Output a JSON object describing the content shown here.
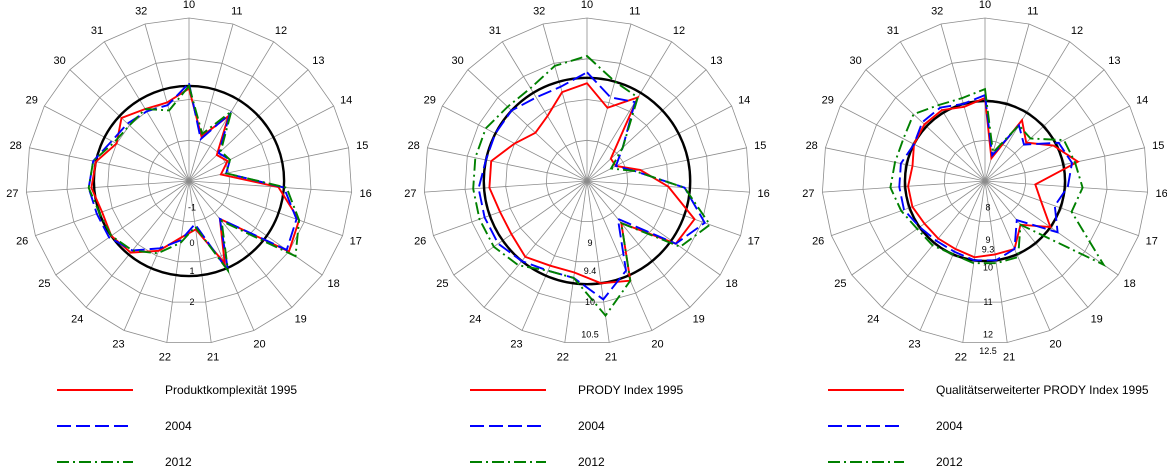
{
  "chart_data": [
    {
      "type": "radar",
      "categories": [
        "10",
        "11",
        "12",
        "13",
        "14",
        "15",
        "16",
        "17",
        "18",
        "19",
        "20",
        "21",
        "22",
        "23",
        "24",
        "25",
        "26",
        "27",
        "28",
        "29",
        "30",
        "31",
        "32"
      ],
      "rmin": -2,
      "rmax": 4,
      "reference_value": 1.5,
      "tick_labels": [
        {
          "label": "-1",
          "value": -1,
          "pos": 0.18
        },
        {
          "label": "0",
          "value": 0,
          "pos": 0.4
        },
        {
          "label": "1",
          "value": 1,
          "pos": 0.57
        },
        {
          "label": "2",
          "value": 2,
          "pos": 0.76
        }
      ],
      "series": [
        {
          "name": "Produktkomplexität 1995",
          "color": "#ff0000",
          "dash": "solid",
          "values": [
            1.4,
            -0.3,
            0.8,
            -0.6,
            -0.4,
            -0.8,
            1.3,
            2.3,
            2.5,
            -0.2,
            1.3,
            -0.2,
            0.1,
            0.8,
            1.4,
            1.5,
            1.4,
            1.6,
            1.5,
            1.0,
            1.4,
            1.1,
            1.0
          ]
        },
        {
          "name": "2004",
          "color": "#0000ff",
          "dash": "dashed",
          "values": [
            1.6,
            -0.4,
            0.9,
            -0.5,
            -0.3,
            -0.6,
            1.5,
            2.2,
            2.4,
            -0.2,
            1.6,
            -0.4,
            0.2,
            0.7,
            1.3,
            1.6,
            1.6,
            1.7,
            1.6,
            1.2,
            1.1,
            1.0,
            0.9
          ]
        },
        {
          "name": "2012",
          "color": "#008000",
          "dash": "dashdot",
          "values": [
            1.5,
            -0.2,
            1.0,
            -0.4,
            -0.3,
            -0.6,
            1.6,
            2.3,
            2.8,
            -0.1,
            1.6,
            -0.3,
            0.3,
            0.9,
            1.3,
            1.5,
            1.5,
            1.7,
            1.6,
            1.1,
            1.0,
            1.1,
            0.7
          ]
        }
      ]
    },
    {
      "type": "radar",
      "categories": [
        "10",
        "11",
        "12",
        "13",
        "14",
        "15",
        "16",
        "17",
        "18",
        "19",
        "20",
        "21",
        "22",
        "23",
        "24",
        "25",
        "26",
        "27",
        "28",
        "29",
        "30",
        "31",
        "32"
      ],
      "rmin": 8,
      "rmax": 11,
      "reference_value": 9.9,
      "tick_labels": [
        {
          "label": "9",
          "value": 9,
          "pos": 0.4
        },
        {
          "label": "9.4",
          "value": 9.4,
          "pos": 0.57
        },
        {
          "label": "10",
          "value": 10,
          "pos": 0.76
        },
        {
          "label": "10.5",
          "value": 10.5,
          "pos": 0.96
        }
      ],
      "series": [
        {
          "name": "PRODY Index 1995",
          "color": "#ff0000",
          "dash": "solid",
          "values": [
            9.8,
            9.4,
            9.8,
            8.6,
            8.6,
            9.0,
            9.5,
            10.1,
            10.0,
            9.0,
            10.0,
            9.9,
            9.7,
            9.7,
            9.8,
            9.7,
            9.7,
            9.8,
            9.8,
            9.5,
            9.3,
            9.4,
            9.7
          ]
        },
        {
          "name": "2004",
          "color": "#0000ff",
          "dash": "dashed",
          "values": [
            10.0,
            9.6,
            9.7,
            8.9,
            8.6,
            8.9,
            9.8,
            10.3,
            10.0,
            8.9,
            9.8,
            10.2,
            9.8,
            9.8,
            9.9,
            10.0,
            10.0,
            10.0,
            9.9,
            9.9,
            9.9,
            9.8,
            9.8
          ]
        },
        {
          "name": "2012",
          "color": "#008000",
          "dash": "dashdot",
          "values": [
            10.3,
            9.9,
            9.8,
            8.9,
            8.5,
            8.9,
            9.8,
            10.4,
            10.1,
            9.0,
            10.0,
            10.5,
            9.8,
            9.8,
            10.0,
            10.1,
            10.1,
            10.1,
            10.1,
            10.1,
            10.0,
            10.0,
            10.2
          ]
        }
      ]
    },
    {
      "type": "radar",
      "categories": [
        "10",
        "11",
        "12",
        "13",
        "14",
        "15",
        "16",
        "17",
        "18",
        "19",
        "20",
        "21",
        "22",
        "23",
        "24",
        "25",
        "26",
        "27",
        "28",
        "29",
        "30",
        "31",
        "32"
      ],
      "rmin": 7.5,
      "rmax": 13,
      "reference_value": 10.2,
      "tick_labels": [
        {
          "label": "8",
          "value": 8,
          "pos": 0.18
        },
        {
          "label": "9",
          "value": 9,
          "pos": 0.38
        },
        {
          "label": "9.3",
          "value": 9.3,
          "pos": 0.44
        },
        {
          "label": "10",
          "value": 10,
          "pos": 0.55
        },
        {
          "label": "11",
          "value": 11,
          "pos": 0.76
        },
        {
          "label": "12",
          "value": 12,
          "pos": 0.96
        },
        {
          "label": "12.5",
          "value": 12.5,
          "pos": 1.06
        }
      ],
      "series": [
        {
          "name": "Qualitätserweiterter PRODY Index 1995",
          "color": "#ff0000",
          "dash": "solid",
          "values": [
            10.3,
            8.3,
            9.9,
            9.4,
            10.1,
            10.7,
            9.2,
            9.5,
            10.2,
            9.4,
            10.0,
            10.0,
            10.1,
            10.0,
            10.0,
            10.0,
            10.1,
            10.1,
            10.0,
            10.2,
            10.3,
            10.3,
            10.1
          ]
        },
        {
          "name": "2004",
          "color": "#0000ff",
          "dash": "dashed",
          "values": [
            10.4,
            8.4,
            9.7,
            9.3,
            10.3,
            10.5,
            10.3,
            10.0,
            10.5,
            9.2,
            10.0,
            10.2,
            10.2,
            10.1,
            10.1,
            10.2,
            10.4,
            10.4,
            10.4,
            10.2,
            10.4,
            10.4,
            10.2
          ]
        },
        {
          "name": "2012",
          "color": "#008000",
          "dash": "dashdot",
          "values": [
            10.6,
            8.5,
            9.7,
            9.6,
            10.5,
            10.6,
            10.8,
            10.6,
            12.4,
            9.4,
            10.3,
            10.3,
            10.3,
            10.2,
            10.3,
            10.3,
            10.5,
            10.7,
            10.6,
            10.6,
            10.8,
            10.5,
            10.4
          ]
        }
      ]
    }
  ]
}
